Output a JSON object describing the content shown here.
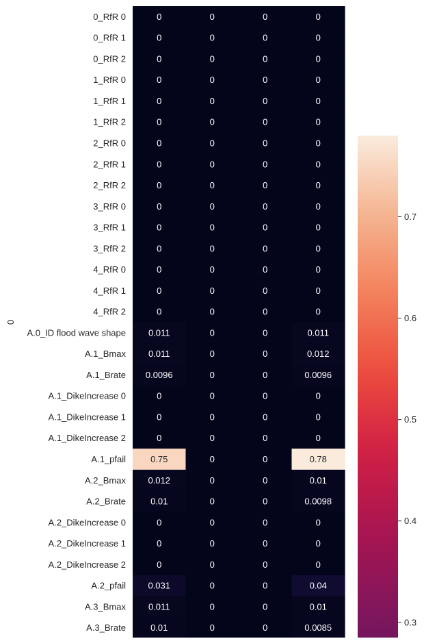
{
  "chart_data": {
    "type": "heatmap",
    "ylabel": "0",
    "xlabel": "",
    "title": "",
    "rows": [
      "0_RfR 0",
      "0_RfR 1",
      "0_RfR 2",
      "1_RfR 0",
      "1_RfR 1",
      "1_RfR 2",
      "2_RfR 0",
      "2_RfR 1",
      "2_RfR 2",
      "3_RfR 0",
      "3_RfR 1",
      "3_RfR 2",
      "4_RfR 0",
      "4_RfR 1",
      "4_RfR 2",
      "A.0_ID flood wave shape",
      "A.1_Bmax",
      "A.1_Brate",
      "A.1_DikeIncrease 0",
      "A.1_DikeIncrease 1",
      "A.1_DikeIncrease 2",
      "A.1_pfail",
      "A.2_Bmax",
      "A.2_Brate",
      "A.2_DikeIncrease 0",
      "A.2_DikeIncrease 1",
      "A.2_DikeIncrease 2",
      "A.2_pfail",
      "A.3_Bmax",
      "A.3_Brate"
    ],
    "columns": 4,
    "values": [
      [
        "0",
        "0",
        "0",
        "0"
      ],
      [
        "0",
        "0",
        "0",
        "0"
      ],
      [
        "0",
        "0",
        "0",
        "0"
      ],
      [
        "0",
        "0",
        "0",
        "0"
      ],
      [
        "0",
        "0",
        "0",
        "0"
      ],
      [
        "0",
        "0",
        "0",
        "0"
      ],
      [
        "0",
        "0",
        "0",
        "0"
      ],
      [
        "0",
        "0",
        "0",
        "0"
      ],
      [
        "0",
        "0",
        "0",
        "0"
      ],
      [
        "0",
        "0",
        "0",
        "0"
      ],
      [
        "0",
        "0",
        "0",
        "0"
      ],
      [
        "0",
        "0",
        "0",
        "0"
      ],
      [
        "0",
        "0",
        "0",
        "0"
      ],
      [
        "0",
        "0",
        "0",
        "0"
      ],
      [
        "0",
        "0",
        "0",
        "0"
      ],
      [
        "0.011",
        "0",
        "0",
        "0.011"
      ],
      [
        "0.011",
        "0",
        "0",
        "0.012"
      ],
      [
        "0.0096",
        "0",
        "0",
        "0.0096"
      ],
      [
        "0",
        "0",
        "0",
        "0"
      ],
      [
        "0",
        "0",
        "0",
        "0"
      ],
      [
        "0",
        "0",
        "0",
        "0"
      ],
      [
        "0.75",
        "0",
        "0",
        "0.78"
      ],
      [
        "0.012",
        "0",
        "0",
        "0.01"
      ],
      [
        "0.01",
        "0",
        "0",
        "0.0098"
      ],
      [
        "0",
        "0",
        "0",
        "0"
      ],
      [
        "0",
        "0",
        "0",
        "0"
      ],
      [
        "0",
        "0",
        "0",
        "0"
      ],
      [
        "0.031",
        "0",
        "0",
        "0.04"
      ],
      [
        "0.011",
        "0",
        "0",
        "0.01"
      ],
      [
        "0.01",
        "0",
        "0",
        "0.0085"
      ]
    ],
    "colorbar": {
      "min": 0.285,
      "max": 0.78,
      "ticks": [
        0.3,
        0.4,
        0.5,
        0.6,
        0.7
      ],
      "tick_labels": [
        "0.3",
        "0.4",
        "0.5",
        "0.6",
        "0.7"
      ],
      "colormap": "rocket"
    },
    "colors": {
      "low": "#03051a",
      "high": "#faebdd"
    },
    "grid": false,
    "legend": "colorbar-right"
  }
}
